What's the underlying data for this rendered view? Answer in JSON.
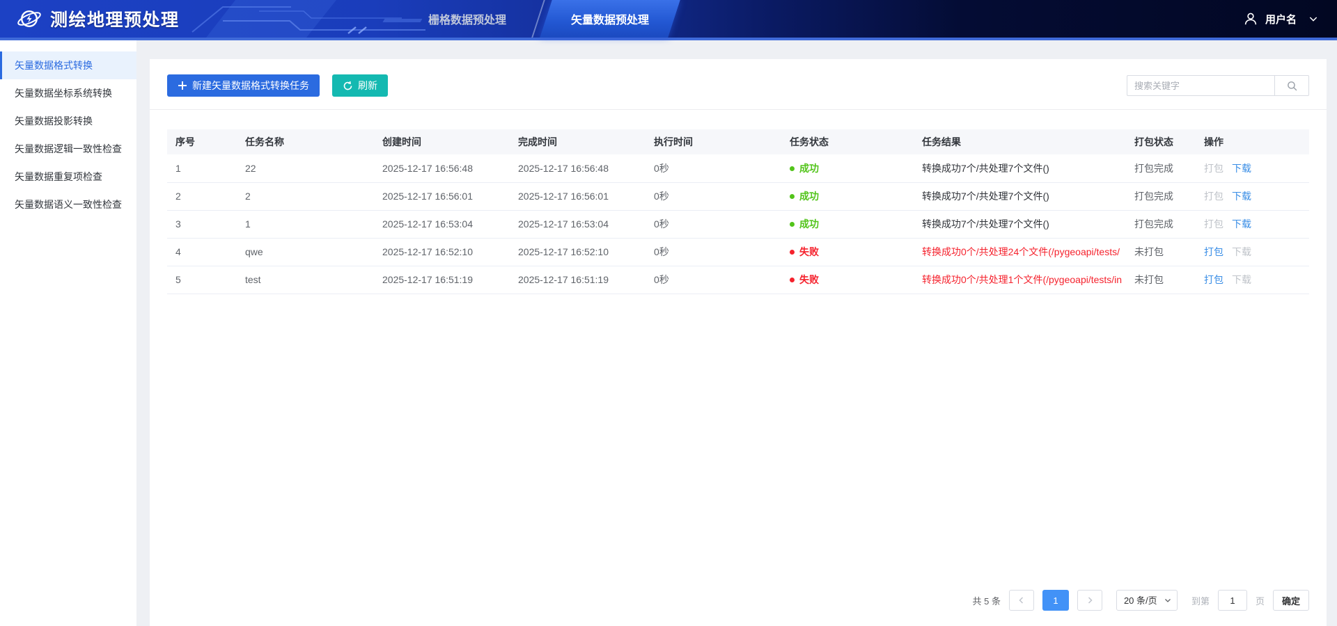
{
  "header": {
    "app_title": "测绘地理预处理",
    "tabs": [
      {
        "label": "栅格数据预处理",
        "active": false
      },
      {
        "label": "矢量数据预处理",
        "active": true
      }
    ],
    "user": {
      "name": "用户名"
    }
  },
  "sidebar": {
    "items": [
      {
        "label": "矢量数据格式转换",
        "active": true
      },
      {
        "label": "矢量数据坐标系统转换",
        "active": false
      },
      {
        "label": "矢量数据投影转换",
        "active": false
      },
      {
        "label": "矢量数据逻辑一致性检查",
        "active": false
      },
      {
        "label": "矢量数据重复项检查",
        "active": false
      },
      {
        "label": "矢量数据语义一致性检查",
        "active": false
      }
    ]
  },
  "toolbar": {
    "new_task_label": "新建矢量数据格式转换任务",
    "refresh_label": "刷新",
    "search_placeholder": "搜索关键字"
  },
  "table": {
    "columns": [
      "序号",
      "任务名称",
      "创建时间",
      "完成时间",
      "执行时间",
      "任务状态",
      "任务结果",
      "打包状态",
      "操作"
    ],
    "rows": [
      {
        "index": "1",
        "name": "22",
        "created": "2025-12-17 16:56:48",
        "finished": "2025-12-17 16:56:48",
        "duration": "0秒",
        "status": "成功",
        "status_type": "success",
        "result": "转换成功7个/共处理7个文件()",
        "result_error": false,
        "package_status": "打包完成",
        "package_label": "打包",
        "download_label": "下载",
        "package_enabled": false,
        "download_enabled": true
      },
      {
        "index": "2",
        "name": "2",
        "created": "2025-12-17 16:56:01",
        "finished": "2025-12-17 16:56:01",
        "duration": "0秒",
        "status": "成功",
        "status_type": "success",
        "result": "转换成功7个/共处理7个文件()",
        "result_error": false,
        "package_status": "打包完成",
        "package_label": "打包",
        "download_label": "下载",
        "package_enabled": false,
        "download_enabled": true
      },
      {
        "index": "3",
        "name": "1",
        "created": "2025-12-17 16:53:04",
        "finished": "2025-12-17 16:53:04",
        "duration": "0秒",
        "status": "成功",
        "status_type": "success",
        "result": "转换成功7个/共处理7个文件()",
        "result_error": false,
        "package_status": "打包完成",
        "package_label": "打包",
        "download_label": "下载",
        "package_enabled": false,
        "download_enabled": true
      },
      {
        "index": "4",
        "name": "qwe",
        "created": "2025-12-17 16:52:10",
        "finished": "2025-12-17 16:52:10",
        "duration": "0秒",
        "status": "失败",
        "status_type": "fail",
        "result": "转换成功0个/共处理24个文件(/pygeoapi/tests/",
        "result_error": true,
        "package_status": "未打包",
        "package_label": "打包",
        "download_label": "下载",
        "package_enabled": true,
        "download_enabled": false
      },
      {
        "index": "5",
        "name": "test",
        "created": "2025-12-17 16:51:19",
        "finished": "2025-12-17 16:51:19",
        "duration": "0秒",
        "status": "失败",
        "status_type": "fail",
        "result": "转换成功0个/共处理1个文件(/pygeoapi/tests/in",
        "result_error": true,
        "package_status": "未打包",
        "package_label": "打包",
        "download_label": "下载",
        "package_enabled": true,
        "download_enabled": false
      }
    ]
  },
  "pagination": {
    "total": "共 5 条",
    "current_page": "1",
    "page_size": "20 条/页",
    "goto_prefix": "到第",
    "goto_value": "1",
    "goto_suffix": "页",
    "confirm": "确定"
  },
  "icons": {
    "logo": "orbit-globe",
    "add": "plus",
    "refresh": "circular-arrows",
    "search": "magnifier",
    "user": "person-outline",
    "user_caret": "chevron-down",
    "prev": "chevron-left",
    "next": "chevron-right",
    "page_size_caret": "chevron-down"
  },
  "colors": {
    "header_left": "#1c41c4",
    "header_right": "#020722",
    "header_underline": "#3f6ad9",
    "primary_blue": "#2b6be0",
    "teal": "#14b9b1",
    "sidebar_active": "#2a6ae0",
    "success_green": "#52c41a",
    "error_red": "#f5222d",
    "link_blue": "#3a8ee6",
    "active_page_blue": "#4292f7"
  }
}
